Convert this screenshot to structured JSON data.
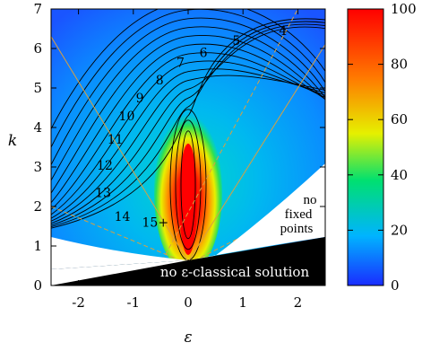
{
  "chart_data": {
    "type": "heatmap",
    "title": "",
    "xlabel": "ε",
    "ylabel": "k",
    "xlim": [
      -2.5,
      2.5
    ],
    "ylim": [
      0,
      7
    ],
    "x_ticks": [
      "-2",
      "-1",
      "0",
      "1",
      "2"
    ],
    "y_ticks": [
      "0",
      "1",
      "2",
      "3",
      "4",
      "5",
      "6",
      "7"
    ],
    "colorbar": {
      "min": 0,
      "max": 100,
      "ticks": [
        "0",
        "20",
        "40",
        "60",
        "80",
        "100"
      ],
      "colors": [
        "#1a2cff",
        "#00b4ff",
        "#00e070",
        "#e6f000",
        "#ff7a00",
        "#ff0000"
      ]
    },
    "contour_labels": [
      {
        "text": "4",
        "x": 1.73,
        "y": 6.45
      },
      {
        "text": "5",
        "x": 0.88,
        "y": 6.2
      },
      {
        "text": "6",
        "x": 0.28,
        "y": 5.9
      },
      {
        "text": "7",
        "x": -0.14,
        "y": 5.65
      },
      {
        "text": "8",
        "x": -0.52,
        "y": 5.2
      },
      {
        "text": "9",
        "x": -0.88,
        "y": 4.75
      },
      {
        "text": "10",
        "x": -1.12,
        "y": 4.3
      },
      {
        "text": "11",
        "x": -1.33,
        "y": 3.7
      },
      {
        "text": "12",
        "x": -1.52,
        "y": 3.05
      },
      {
        "text": "13",
        "x": -1.55,
        "y": 2.35
      },
      {
        "text": "14",
        "x": -1.2,
        "y": 1.75
      },
      {
        "text": "15+",
        "x": -0.6,
        "y": 1.6
      }
    ],
    "annotations": {
      "no_fixed_points": [
        "no",
        "fixed",
        "points"
      ],
      "no_classical": "no ε-classical solution"
    }
  }
}
